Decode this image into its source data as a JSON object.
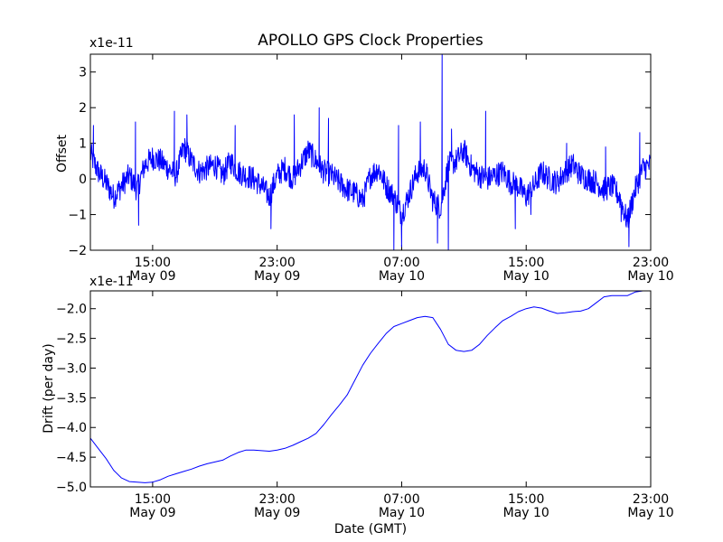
{
  "chart_data": [
    {
      "type": "line",
      "title": "APOLLO GPS Clock Properties",
      "xlabel": "",
      "ylabel": "Offset",
      "scale_label": "x1e-11",
      "color": "#0000ff",
      "ylim": [
        -2,
        3.5
      ],
      "yticks": [
        -2,
        -1,
        0,
        1,
        2,
        3
      ],
      "ytick_labels": [
        "−2",
        "−1",
        "0",
        "1",
        "2",
        "3"
      ],
      "xlim": [
        0,
        36
      ],
      "xticks": [
        {
          "x": 4,
          "time": "15:00",
          "date": "May 09"
        },
        {
          "x": 12,
          "time": "23:00",
          "date": "May 09"
        },
        {
          "x": 20,
          "time": "07:00",
          "date": "May 10"
        },
        {
          "x": 28,
          "time": "15:00",
          "date": "May 10"
        },
        {
          "x": 36,
          "time": "23:00",
          "date": "May 10"
        }
      ],
      "series": [
        {
          "name": "Offset",
          "noise_amplitude": 0.35,
          "x": [
            0,
            0.5,
            1,
            1.5,
            2,
            2.5,
            3,
            3.5,
            4,
            4.5,
            5,
            5.5,
            6,
            6.5,
            7,
            7.5,
            8,
            8.5,
            9,
            9.5,
            10,
            10.5,
            11,
            11.5,
            12,
            12.5,
            13,
            13.5,
            14,
            14.5,
            15,
            15.5,
            16,
            16.5,
            17,
            17.5,
            18,
            18.5,
            19,
            19.5,
            20,
            20.5,
            21,
            21.5,
            22,
            22.5,
            23,
            23.5,
            24,
            24.5,
            25,
            25.5,
            26,
            26.5,
            27,
            27.5,
            28,
            28.5,
            29,
            29.5,
            30,
            30.5,
            31,
            31.5,
            32,
            32.5,
            33,
            33.5,
            34,
            34.5,
            35,
            35.5,
            36
          ],
          "values": [
            0.7,
            0.2,
            -0.1,
            -0.5,
            -0.2,
            0.1,
            -0.3,
            0.4,
            0.6,
            0.5,
            0.3,
            0.1,
            0.9,
            0.5,
            0.2,
            0.3,
            0.4,
            0.1,
            0.5,
            0.2,
            0.1,
            0.0,
            -0.2,
            -0.5,
            0.1,
            0.3,
            0.0,
            0.4,
            0.8,
            0.5,
            0.2,
            0.1,
            -0.1,
            -0.3,
            -0.4,
            -0.6,
            0.1,
            0.3,
            -0.2,
            -0.5,
            -1.0,
            -0.4,
            0.2,
            0.3,
            -0.6,
            -0.8,
            0.4,
            0.5,
            0.8,
            0.3,
            0.1,
            0.0,
            0.1,
            0.2,
            -0.1,
            -0.2,
            -0.5,
            -0.2,
            0.2,
            0.0,
            -0.1,
            0.2,
            0.4,
            0.1,
            0.0,
            -0.1,
            -0.3,
            -0.2,
            -0.5,
            -1.2,
            -0.3,
            0.3,
            0.4
          ],
          "spikes": [
            {
              "x": 0.2,
              "value": 1.5
            },
            {
              "x": 2.9,
              "value": 1.6
            },
            {
              "x": 3.1,
              "value": -1.3
            },
            {
              "x": 5.4,
              "value": 1.9
            },
            {
              "x": 6.2,
              "value": 1.8
            },
            {
              "x": 9.3,
              "value": 1.5
            },
            {
              "x": 11.6,
              "value": -1.4
            },
            {
              "x": 13.1,
              "value": 1.8
            },
            {
              "x": 14.7,
              "value": 2.0
            },
            {
              "x": 15.3,
              "value": 1.7
            },
            {
              "x": 19.5,
              "value": -2.0
            },
            {
              "x": 19.8,
              "value": 1.5
            },
            {
              "x": 20.0,
              "value": -1.9
            },
            {
              "x": 21.2,
              "value": 1.6
            },
            {
              "x": 22.3,
              "value": -1.8
            },
            {
              "x": 22.6,
              "value": 3.5
            },
            {
              "x": 23.0,
              "value": -2.0
            },
            {
              "x": 23.2,
              "value": 1.4
            },
            {
              "x": 25.4,
              "value": 1.9
            },
            {
              "x": 27.3,
              "value": -1.4
            },
            {
              "x": 28.3,
              "value": -1.0
            },
            {
              "x": 30.6,
              "value": 1.0
            },
            {
              "x": 33.1,
              "value": 0.9
            },
            {
              "x": 34.1,
              "value": -1.2
            },
            {
              "x": 34.6,
              "value": -1.9
            },
            {
              "x": 35.3,
              "value": 1.3
            }
          ]
        }
      ]
    },
    {
      "type": "line",
      "title": "",
      "xlabel": "Date (GMT)",
      "ylabel": "Drift (per day)",
      "scale_label": "x1e-11",
      "color": "#0000ff",
      "ylim": [
        -5.0,
        -1.7
      ],
      "yticks": [
        -5.0,
        -4.5,
        -4.0,
        -3.5,
        -3.0,
        -2.5,
        -2.0
      ],
      "ytick_labels": [
        "−5.0",
        "−4.5",
        "−4.0",
        "−3.5",
        "−3.0",
        "−2.5",
        "−2.0"
      ],
      "xlim": [
        0,
        36
      ],
      "xticks": [
        {
          "x": 4,
          "time": "15:00",
          "date": "May 09"
        },
        {
          "x": 12,
          "time": "23:00",
          "date": "May 09"
        },
        {
          "x": 20,
          "time": "07:00",
          "date": "May 10"
        },
        {
          "x": 28,
          "time": "15:00",
          "date": "May 10"
        },
        {
          "x": 36,
          "time": "23:00",
          "date": "May 10"
        }
      ],
      "series": [
        {
          "name": "Drift",
          "x": [
            0,
            0.5,
            1,
            1.5,
            2,
            2.5,
            3,
            3.5,
            4,
            4.5,
            5,
            5.5,
            6,
            6.5,
            7,
            7.5,
            8,
            8.5,
            9,
            9.5,
            10,
            10.5,
            11,
            11.5,
            12,
            12.5,
            13,
            13.5,
            14,
            14.5,
            15,
            15.5,
            16,
            16.5,
            17,
            17.5,
            18,
            18.5,
            19,
            19.5,
            20,
            20.5,
            21,
            21.5,
            22,
            22.5,
            23,
            23.5,
            24,
            24.5,
            25,
            25.5,
            26,
            26.5,
            27,
            27.5,
            28,
            28.5,
            29,
            29.5,
            30,
            30.5,
            31,
            31.5,
            32,
            32.5,
            33,
            33.5,
            34,
            34.5,
            35,
            35.5,
            36
          ],
          "values": [
            -4.18,
            -4.35,
            -4.52,
            -4.72,
            -4.85,
            -4.91,
            -4.92,
            -4.93,
            -4.92,
            -4.88,
            -4.82,
            -4.78,
            -4.74,
            -4.7,
            -4.65,
            -4.61,
            -4.58,
            -4.55,
            -4.48,
            -4.42,
            -4.38,
            -4.38,
            -4.39,
            -4.4,
            -4.38,
            -4.35,
            -4.3,
            -4.24,
            -4.18,
            -4.1,
            -3.95,
            -3.78,
            -3.62,
            -3.45,
            -3.2,
            -2.95,
            -2.75,
            -2.58,
            -2.42,
            -2.3,
            -2.25,
            -2.2,
            -2.15,
            -2.13,
            -2.15,
            -2.35,
            -2.6,
            -2.7,
            -2.72,
            -2.7,
            -2.6,
            -2.45,
            -2.32,
            -2.2,
            -2.13,
            -2.05,
            -2.0,
            -1.97,
            -1.99,
            -2.04,
            -2.08,
            -2.07,
            -2.05,
            -2.04,
            -2.0,
            -1.9,
            -1.8,
            -1.78,
            -1.78,
            -1.78,
            -1.72,
            -1.7,
            -1.68
          ]
        }
      ]
    }
  ]
}
